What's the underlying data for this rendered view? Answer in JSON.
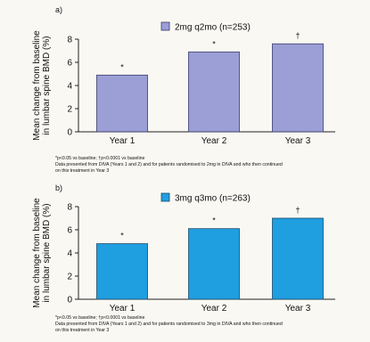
{
  "background": "#faf8f3",
  "chart_data": [
    {
      "panel_label": "a)",
      "type": "bar",
      "categories": [
        "Year 1",
        "Year 2",
        "Year 3"
      ],
      "series": [
        {
          "name": "2mg q2mo (n=253)",
          "values": [
            4.9,
            6.9,
            7.6
          ],
          "color": "#9b9fd6"
        }
      ],
      "bar_stroke": "#3a3a6a",
      "significance": [
        "*",
        "*",
        "†"
      ],
      "ylabel_line1": "Mean change from baseline",
      "ylabel_line2": "in lumbar spine BMD (%)",
      "xlabel": "",
      "ylim": [
        0,
        8
      ],
      "yticks": [
        0,
        2,
        4,
        6,
        8
      ],
      "grid": false,
      "legend_position": "top-right",
      "footnote_lines": [
        "*p<0.05 vs baseline; †p<0.0001 vs baseline",
        "Data presented from DIVA (Years 1 and 2) and for patients randomised to 2mg in DIVA and who then continued",
        "on this treatment in Year 3"
      ]
    },
    {
      "panel_label": "b)",
      "type": "bar",
      "categories": [
        "Year 1",
        "Year 2",
        "Year 3"
      ],
      "series": [
        {
          "name": "3mg q3mo (n=263)",
          "values": [
            4.8,
            6.1,
            7.0
          ],
          "color": "#1f9ee0"
        }
      ],
      "bar_stroke": "#1a4a6a",
      "significance": [
        "*",
        "*",
        "†"
      ],
      "ylabel_line1": "Mean change from baseline",
      "ylabel_line2": "in lumbar spine BMD (%)",
      "xlabel": "",
      "ylim": [
        0,
        8
      ],
      "yticks": [
        0,
        2,
        4,
        6,
        8
      ],
      "grid": false,
      "legend_position": "top-right",
      "footnote_lines": [
        "*p<0.05 vs baseline; †p<0.0001 vs baseline",
        "Data presented from DIVA (Years 1 and 2) and for patients randomised to 3mg in DIVA and who then continued",
        "on this treatment in Year 3"
      ]
    }
  ]
}
